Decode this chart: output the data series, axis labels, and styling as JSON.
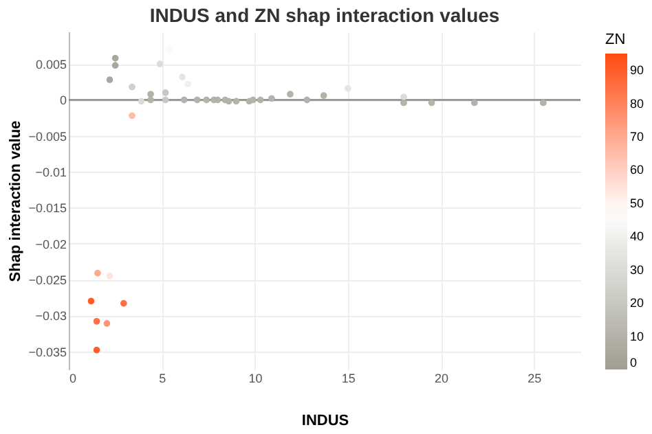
{
  "chart_data": {
    "type": "scatter",
    "title": "INDUS and ZN shap interaction values",
    "xlabel": "INDUS",
    "ylabel": "Shap interaction value",
    "clabel": "ZN",
    "x": [
      2.2,
      2.5,
      2.5,
      3.4,
      3.4,
      3.9,
      4.4,
      4.4,
      4.9,
      5.4,
      5.2,
      5.2,
      6.1,
      6.2,
      6.4,
      6.9,
      7.4,
      7.8,
      8.0,
      8.4,
      8.6,
      9.0,
      9.7,
      9.9,
      10.3,
      10.9,
      11.9,
      12.8,
      13.7,
      15.0,
      18.0,
      18.0,
      19.5,
      21.8,
      25.5,
      1.55,
      2.2,
      1.2,
      2.95,
      1.5,
      2.05,
      1.5
    ],
    "values": [
      0.0028,
      0.0058,
      0.0048,
      0.0018,
      -0.0022,
      -0.0002,
      0.0008,
      0.0,
      0.005,
      0.007,
      0.001,
      0.0,
      0.0032,
      0.0,
      0.0022,
      0.0,
      0.0,
      0.0,
      0.0,
      0.0,
      -0.0002,
      -0.0002,
      -0.0002,
      0.0,
      0.0,
      0.0002,
      0.0008,
      0.0,
      0.0006,
      0.0016,
      0.0004,
      -0.0004,
      -0.0004,
      -0.0004,
      -0.0004,
      -0.0241,
      -0.0245,
      -0.028,
      -0.0283,
      -0.0308,
      -0.0311,
      -0.0348
    ],
    "cvalues": [
      5,
      5,
      5,
      25,
      65,
      30,
      10,
      10,
      30,
      45,
      20,
      20,
      35,
      10,
      40,
      10,
      10,
      10,
      10,
      10,
      10,
      10,
      10,
      10,
      10,
      10,
      10,
      10,
      10,
      35,
      30,
      10,
      10,
      10,
      10,
      70,
      55,
      90,
      85,
      85,
      75,
      90
    ],
    "xlim": [
      0,
      27.5
    ],
    "ylim": [
      -0.0375,
      0.0095
    ],
    "xticks": [
      0,
      5,
      10,
      15,
      20,
      25
    ],
    "yticks": [
      0.005,
      0,
      -0.005,
      -0.01,
      -0.015,
      -0.02,
      -0.025,
      -0.03,
      -0.035
    ],
    "clim": [
      0,
      95
    ],
    "cticks": [
      0,
      10,
      20,
      30,
      40,
      50,
      60,
      70,
      80,
      90
    ],
    "ref_lines": [
      {
        "axis": "y",
        "value": 0,
        "color": "#888888"
      }
    ],
    "grid": true
  }
}
